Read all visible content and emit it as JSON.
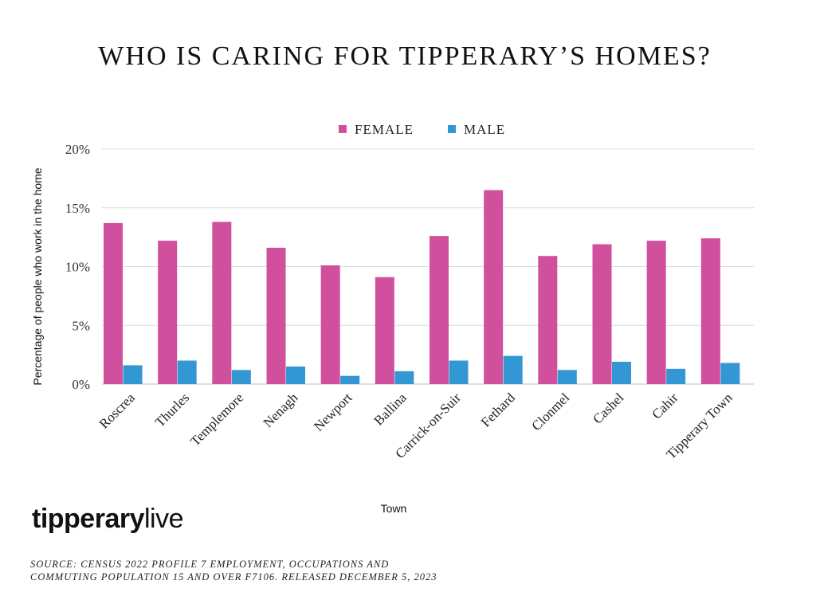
{
  "title": "WHO IS CARING FOR TIPPERARY’S HOMES?",
  "chart_data": {
    "type": "bar",
    "categories": [
      "Roscrea",
      "Thurles",
      "Templemore",
      "Nenagh",
      "Newport",
      "Ballina",
      "Carrick-on-Suir",
      "Fethard",
      "Clonmel",
      "Cashel",
      "Cahir",
      "Tipperary Town"
    ],
    "series": [
      {
        "name": "FEMALE",
        "color": "#d0509e",
        "values": [
          13.7,
          12.2,
          13.8,
          11.6,
          10.1,
          9.1,
          12.6,
          16.5,
          10.9,
          11.9,
          12.2,
          12.4
        ]
      },
      {
        "name": "MALE",
        "color": "#3397d3",
        "values": [
          1.6,
          2.0,
          1.2,
          1.5,
          0.7,
          1.1,
          2.0,
          2.4,
          1.2,
          1.9,
          1.3,
          1.8
        ]
      }
    ],
    "xlabel": "Town",
    "ylabel": "Percentage of people who work in the home",
    "ylim": [
      0,
      20
    ],
    "yticks": [
      "0%",
      "5%",
      "10%",
      "15%",
      "20%"
    ],
    "ytick_values": [
      0,
      5,
      10,
      15,
      20
    ],
    "grid": true,
    "legend_position": "top-center"
  },
  "logo": {
    "bold": "tipperary",
    "light": "live"
  },
  "source": {
    "line1": "SOURCE: CENSUS 2022 PROFILE 7 EMPLOYMENT, OCCUPATIONS AND",
    "line2": "COMMUTING POPULATION 15 AND OVER F7106. RELEASED DECEMBER 5, 2023"
  }
}
